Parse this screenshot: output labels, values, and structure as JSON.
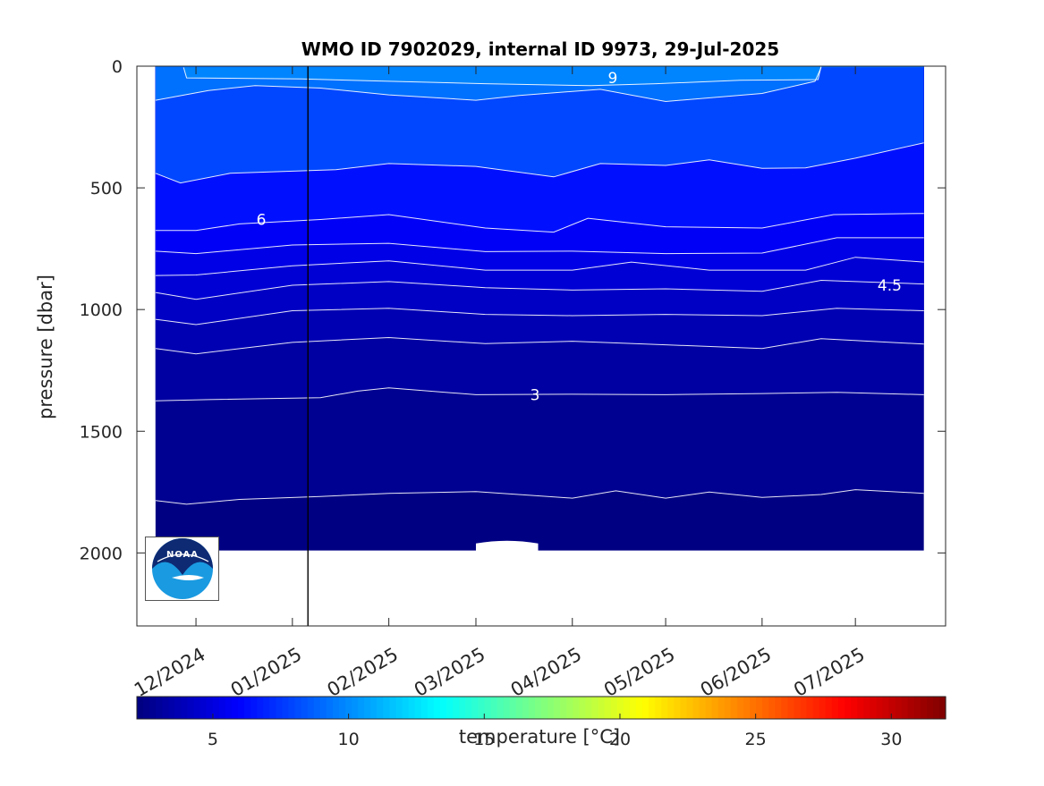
{
  "chart_data": {
    "type": "heatmap",
    "title": "WMO ID 7902029, internal ID 9973, 29-Jul-2025",
    "ylabel": "pressure [dbar]",
    "ylim": [
      2300,
      0
    ],
    "xlim": [
      "2024-11-12",
      "2025-07-30"
    ],
    "y_reversed": true,
    "y_ticks": [
      0,
      500,
      1000,
      1500,
      2000
    ],
    "y_tick_labels": [
      "0",
      "500",
      "1000",
      "1500",
      "2000"
    ],
    "x_tick_dates": [
      "2024-12-01",
      "2025-01-01",
      "2025-02-01",
      "2025-03-01",
      "2025-04-01",
      "2025-05-01",
      "2025-06-01",
      "2025-07-01"
    ],
    "x_tick_labels": [
      "12/2024",
      "01/2025",
      "02/2025",
      "03/2025",
      "04/2025",
      "05/2025",
      "06/2025",
      "07/2025"
    ],
    "data_range": {
      "start": "2024-11-18",
      "end": "2025-07-23",
      "max_pressure": 1990
    },
    "vertical_marker_date": "2025-01-06",
    "colormap": "jet",
    "colorbar": {
      "label": "temperature [°C]",
      "min": 2.2,
      "max": 32,
      "ticks": [
        5,
        10,
        15,
        20,
        25,
        30
      ],
      "tick_labels": [
        "5",
        "10",
        "15",
        "20",
        "25",
        "30"
      ]
    },
    "contour_labels": [
      {
        "text": "9",
        "date": "2025-04-14",
        "pressure": 48
      },
      {
        "text": "6",
        "date": "2024-12-22",
        "pressure": 630
      },
      {
        "text": "4.5",
        "date": "2025-07-12",
        "pressure": 900
      },
      {
        "text": "3",
        "date": "2025-03-20",
        "pressure": 1350
      }
    ],
    "contours": [
      {
        "level": 9.5,
        "points": [
          [
            "2024-11-27",
            5
          ],
          [
            "2024-11-28",
            48
          ],
          [
            "2025-01-04",
            52
          ],
          [
            "2025-01-25",
            60
          ],
          [
            "2025-03-04",
            72
          ],
          [
            "2025-04-07",
            80
          ],
          [
            "2025-04-28",
            72
          ],
          [
            "2025-05-25",
            58
          ],
          [
            "2025-06-19",
            55
          ],
          [
            "2025-06-20",
            0
          ]
        ]
      },
      {
        "level": 9,
        "points": [
          [
            "2024-11-18",
            140
          ],
          [
            "2024-12-05",
            100
          ],
          [
            "2024-12-20",
            80
          ],
          [
            "2025-01-10",
            90
          ],
          [
            "2025-02-01",
            118
          ],
          [
            "2025-03-01",
            140
          ],
          [
            "2025-03-15",
            120
          ],
          [
            "2025-04-10",
            95
          ],
          [
            "2025-05-01",
            145
          ],
          [
            "2025-06-01",
            112
          ],
          [
            "2025-06-18",
            62
          ],
          [
            "2025-06-20",
            5
          ]
        ]
      },
      {
        "level": 7,
        "points": [
          [
            "2024-11-18",
            440
          ],
          [
            "2024-11-26",
            480
          ],
          [
            "2024-12-12",
            440
          ],
          [
            "2025-01-15",
            425
          ],
          [
            "2025-02-01",
            400
          ],
          [
            "2025-03-01",
            412
          ],
          [
            "2025-03-26",
            455
          ],
          [
            "2025-04-10",
            400
          ],
          [
            "2025-05-01",
            408
          ],
          [
            "2025-05-15",
            385
          ],
          [
            "2025-06-01",
            420
          ],
          [
            "2025-06-15",
            418
          ],
          [
            "2025-07-01",
            378
          ],
          [
            "2025-07-23",
            315
          ]
        ]
      },
      {
        "level": 6,
        "points": [
          [
            "2024-11-18",
            675
          ],
          [
            "2024-12-01",
            675
          ],
          [
            "2024-12-15",
            648
          ],
          [
            "2025-01-10",
            630
          ],
          [
            "2025-02-01",
            610
          ],
          [
            "2025-03-04",
            665
          ],
          [
            "2025-03-26",
            682
          ],
          [
            "2025-04-06",
            625
          ],
          [
            "2025-05-01",
            660
          ],
          [
            "2025-06-01",
            665
          ],
          [
            "2025-06-24",
            610
          ],
          [
            "2025-07-23",
            605
          ]
        ]
      },
      {
        "level": 5.5,
        "points": [
          [
            "2024-11-18",
            760
          ],
          [
            "2024-12-01",
            770
          ],
          [
            "2025-01-01",
            735
          ],
          [
            "2025-02-01",
            728
          ],
          [
            "2025-03-04",
            762
          ],
          [
            "2025-04-01",
            760
          ],
          [
            "2025-05-01",
            770
          ],
          [
            "2025-06-01",
            768
          ],
          [
            "2025-06-25",
            705
          ],
          [
            "2025-07-23",
            705
          ]
        ]
      },
      {
        "level": 5,
        "points": [
          [
            "2024-11-18",
            860
          ],
          [
            "2024-12-01",
            858
          ],
          [
            "2025-01-01",
            820
          ],
          [
            "2025-02-01",
            800
          ],
          [
            "2025-03-04",
            838
          ],
          [
            "2025-04-01",
            838
          ],
          [
            "2025-04-20",
            805
          ],
          [
            "2025-05-15",
            838
          ],
          [
            "2025-06-15",
            838
          ],
          [
            "2025-07-01",
            785
          ],
          [
            "2025-07-23",
            805
          ]
        ]
      },
      {
        "level": 4.5,
        "points": [
          [
            "2024-11-18",
            930
          ],
          [
            "2024-12-01",
            958
          ],
          [
            "2025-01-01",
            900
          ],
          [
            "2025-02-01",
            885
          ],
          [
            "2025-03-04",
            910
          ],
          [
            "2025-04-01",
            920
          ],
          [
            "2025-05-01",
            915
          ],
          [
            "2025-06-01",
            925
          ],
          [
            "2025-06-20",
            880
          ],
          [
            "2025-07-23",
            895
          ]
        ]
      },
      {
        "level": 4,
        "points": [
          [
            "2024-11-18",
            1040
          ],
          [
            "2024-12-01",
            1062
          ],
          [
            "2025-01-01",
            1005
          ],
          [
            "2025-02-01",
            995
          ],
          [
            "2025-03-04",
            1020
          ],
          [
            "2025-04-01",
            1025
          ],
          [
            "2025-05-01",
            1020
          ],
          [
            "2025-06-01",
            1025
          ],
          [
            "2025-06-25",
            995
          ],
          [
            "2025-07-23",
            1005
          ]
        ]
      },
      {
        "level": 3.5,
        "points": [
          [
            "2024-11-18",
            1160
          ],
          [
            "2024-12-01",
            1182
          ],
          [
            "2025-01-01",
            1135
          ],
          [
            "2025-02-01",
            1115
          ],
          [
            "2025-03-04",
            1140
          ],
          [
            "2025-04-01",
            1130
          ],
          [
            "2025-05-01",
            1145
          ],
          [
            "2025-06-01",
            1160
          ],
          [
            "2025-06-20",
            1120
          ],
          [
            "2025-07-23",
            1142
          ]
        ]
      },
      {
        "level": 3,
        "points": [
          [
            "2024-11-18",
            1375
          ],
          [
            "2024-12-05",
            1370
          ],
          [
            "2025-01-10",
            1362
          ],
          [
            "2025-01-22",
            1335
          ],
          [
            "2025-02-01",
            1322
          ],
          [
            "2025-03-01",
            1350
          ],
          [
            "2025-04-01",
            1348
          ],
          [
            "2025-05-01",
            1350
          ],
          [
            "2025-06-01",
            1345
          ],
          [
            "2025-06-25",
            1340
          ],
          [
            "2025-07-23",
            1350
          ]
        ]
      },
      {
        "level": 2.5,
        "points": [
          [
            "2024-11-18",
            1785
          ],
          [
            "2024-11-28",
            1800
          ],
          [
            "2024-12-15",
            1780
          ],
          [
            "2025-01-10",
            1768
          ],
          [
            "2025-02-01",
            1755
          ],
          [
            "2025-03-01",
            1748
          ],
          [
            "2025-04-01",
            1775
          ],
          [
            "2025-04-15",
            1745
          ],
          [
            "2025-05-01",
            1775
          ],
          [
            "2025-05-15",
            1750
          ],
          [
            "2025-06-01",
            1772
          ],
          [
            "2025-06-20",
            1760
          ],
          [
            "2025-07-01",
            1740
          ],
          [
            "2025-07-23",
            1755
          ]
        ]
      }
    ],
    "layers": [
      {
        "temp": 2.3,
        "top": null
      },
      {
        "temp": 2.7,
        "level_index": 10
      },
      {
        "temp": 3.2,
        "level_index": 9
      },
      {
        "temp": 3.7,
        "level_index": 8
      },
      {
        "temp": 4.2,
        "level_index": 7
      },
      {
        "temp": 4.7,
        "level_index": 6
      },
      {
        "temp": 5.2,
        "level_index": 5
      },
      {
        "temp": 5.7,
        "level_index": 4
      },
      {
        "temp": 6.4,
        "level_index": 3
      },
      {
        "temp": 8.0,
        "level_index": 2
      },
      {
        "temp": 9.2,
        "level_index": 1
      },
      {
        "temp": 9.8,
        "level_index": 0
      }
    ],
    "gaps": [
      {
        "start": "2025-03-01",
        "end": "2025-03-21",
        "pressure_from": 1950,
        "pressure_to": 2000
      }
    ]
  },
  "logo": {
    "text": "NOAA"
  }
}
